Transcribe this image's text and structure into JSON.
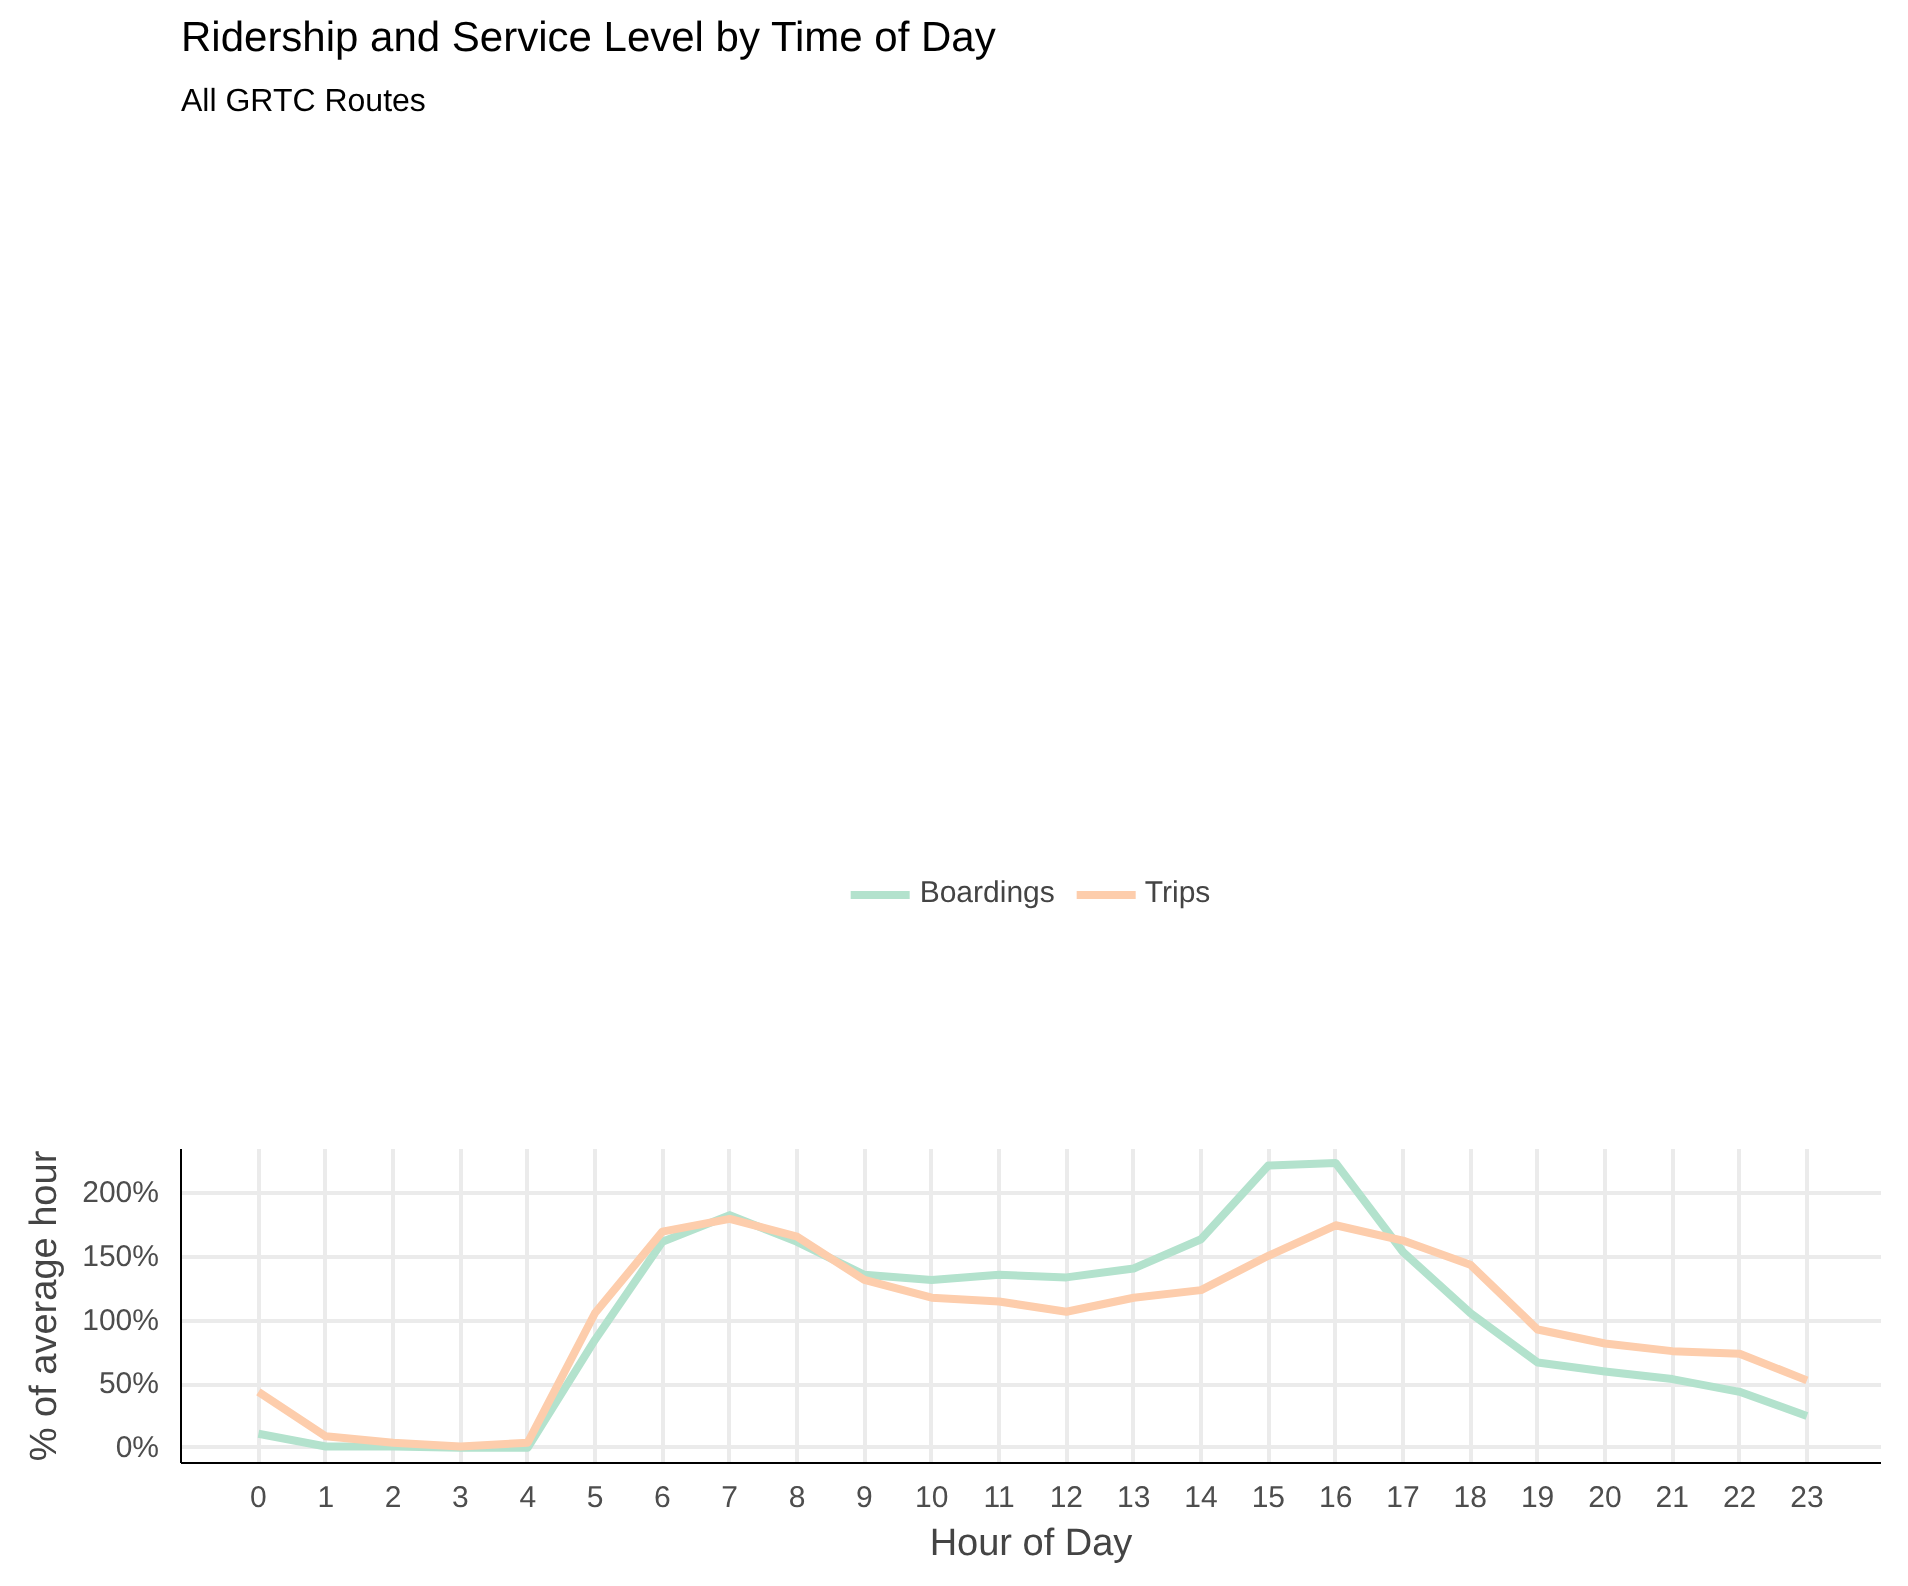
{
  "chart_data": {
    "type": "line",
    "title": "Ridership and Service Level by Time of Day",
    "subtitle": "All GRTC Routes",
    "xlabel": "Hour of Day",
    "ylabel": "% of average hour",
    "x": [
      0,
      1,
      2,
      3,
      4,
      5,
      6,
      7,
      8,
      9,
      10,
      11,
      12,
      13,
      14,
      15,
      16,
      17,
      18,
      19,
      20,
      21,
      22,
      23
    ],
    "series": [
      {
        "name": "Boardings",
        "color": "#b3e2cd",
        "values": [
          11,
          1,
          1,
          0,
          0,
          85,
          162,
          183,
          162,
          136,
          132,
          136,
          134,
          141,
          164,
          222,
          224,
          154,
          106,
          67,
          60,
          54,
          44,
          25
        ]
      },
      {
        "name": "Trips",
        "color": "#fdcdac",
        "values": [
          44,
          9,
          4,
          1,
          4,
          106,
          170,
          180,
          166,
          132,
          118,
          115,
          107,
          118,
          124,
          151,
          175,
          163,
          144,
          93,
          82,
          76,
          74,
          53
        ]
      }
    ],
    "xlim": [
      -1.15,
      24.1
    ],
    "ylim": [
      -12,
      235
    ],
    "xticks": [
      0,
      1,
      2,
      3,
      4,
      5,
      6,
      7,
      8,
      9,
      10,
      11,
      12,
      13,
      14,
      15,
      16,
      17,
      18,
      19,
      20,
      21,
      22,
      23
    ],
    "yticks": [
      {
        "value": 0,
        "label": "0%"
      },
      {
        "value": 50,
        "label": "50%"
      },
      {
        "value": 100,
        "label": "100%"
      },
      {
        "value": 150,
        "label": "150%"
      },
      {
        "value": 200,
        "label": "200%"
      }
    ],
    "grid": true,
    "legend": "top",
    "marker": "none",
    "line_style": "solid"
  }
}
